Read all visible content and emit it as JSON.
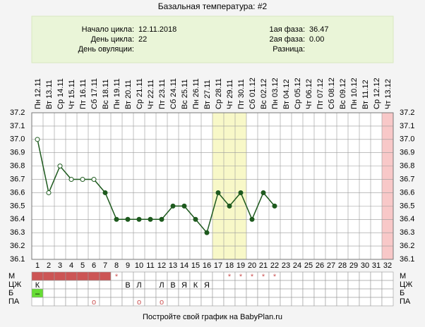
{
  "chart_data": {
    "type": "line",
    "title": "Базальная температура: #2",
    "info": {
      "left": [
        {
          "label": "Начало цикла:",
          "value": "12.11.2018"
        },
        {
          "label": "День цикла:",
          "value": "22"
        },
        {
          "label": "День овуляции:"
        }
      ],
      "right": [
        {
          "label": "1ая фаза:",
          "value": "36.47"
        },
        {
          "label": "2ая фаза:",
          "value": "0.00"
        },
        {
          "label": "Разница:"
        }
      ]
    },
    "categories": [
      "Пн 12.11",
      "Вт 13.11",
      "Ср 14.11",
      "Чт 15.11",
      "Пт 16.11",
      "Сб 17.11",
      "Вс 18.11",
      "Пн 19.11",
      "Вт 20.11",
      "Ср 21.11",
      "Чт 22.11",
      "Пт 23.11",
      "Сб 24.11",
      "Вс 25.11",
      "Пн 26.11",
      "Вт 27.11",
      "Ср 28.11",
      "Чт 29.11",
      "Пт 30.11",
      "Сб 01.12",
      "Вс 02.12",
      "Пн 03.12",
      "Вт 04.12",
      "Ср 05.12",
      "Чт 06.12",
      "Пт 07.12",
      "Сб 08.12",
      "Вс 09.12",
      "Пн 10.12",
      "Вт 11.12",
      "Ср 12.12",
      "Чт 13.12"
    ],
    "days": [
      1,
      2,
      3,
      4,
      5,
      6,
      7,
      8,
      9,
      10,
      11,
      12,
      13,
      14,
      15,
      16,
      17,
      18,
      19,
      20,
      21,
      22,
      23,
      24,
      25,
      26,
      27,
      28,
      29,
      30,
      31,
      32
    ],
    "series": [
      {
        "name": "Температура",
        "color": "#1e5a1e",
        "values": [
          37.0,
          36.6,
          36.8,
          36.7,
          36.7,
          36.7,
          36.6,
          36.4,
          36.4,
          36.4,
          36.4,
          36.4,
          36.5,
          36.5,
          36.4,
          36.3,
          36.6,
          36.5,
          36.6,
          36.4,
          36.6,
          36.5,
          null,
          null,
          null,
          null,
          null,
          null,
          null,
          null,
          null,
          null
        ],
        "filled": [
          false,
          false,
          false,
          false,
          false,
          false,
          true,
          true,
          true,
          true,
          true,
          true,
          true,
          true,
          true,
          true,
          true,
          true,
          true,
          true,
          true,
          true,
          false,
          false,
          false,
          false,
          false,
          false,
          false,
          false,
          false,
          false
        ]
      }
    ],
    "ylim": [
      36.1,
      37.2
    ],
    "yticks": [
      36.1,
      36.2,
      36.3,
      36.4,
      36.5,
      36.6,
      36.7,
      36.8,
      36.9,
      {
        "value": 37,
        "label": "37.0"
      },
      37.1,
      37.2
    ],
    "grid": true,
    "highlight_days": [
      {
        "days": [
          17,
          18,
          19
        ],
        "color": "#f8f8c8"
      },
      {
        "days": [
          32
        ],
        "color": "#f8c8c8"
      }
    ],
    "rows": [
      {
        "name": "М",
        "fill": "#cc5555",
        "filled": [
          true,
          true,
          true,
          true,
          true,
          true,
          true,
          false,
          false,
          false,
          false,
          false,
          false,
          false,
          false,
          false,
          false,
          false,
          false,
          false,
          false,
          false,
          false,
          false,
          false,
          false,
          false,
          false,
          false,
          false,
          false,
          false
        ],
        "cells": [
          null,
          null,
          null,
          null,
          null,
          null,
          null,
          "*",
          null,
          null,
          null,
          null,
          null,
          null,
          null,
          null,
          null,
          "*",
          "*",
          "*",
          "*",
          "*",
          null,
          null,
          null,
          null,
          null,
          null,
          null,
          null,
          null,
          null
        ]
      },
      {
        "name": "ЦЖ",
        "cells": [
          "К",
          null,
          null,
          null,
          null,
          null,
          null,
          null,
          "В",
          "Л",
          null,
          "Л",
          "В",
          "Я",
          "К",
          "Я",
          null,
          null,
          null,
          null,
          null,
          null,
          null,
          null,
          null,
          null,
          null,
          null,
          null,
          null,
          null,
          null
        ]
      },
      {
        "name": "Б",
        "fill": "#66dd33",
        "filled": [
          true,
          false,
          false,
          false,
          false,
          false,
          false,
          false,
          false,
          false,
          false,
          false,
          false,
          false,
          false,
          false,
          false,
          false,
          false,
          false,
          false,
          false,
          false,
          false,
          false,
          false,
          false,
          false,
          false,
          false,
          false,
          false
        ],
        "cells": [
          "–",
          null,
          null,
          null,
          null,
          null,
          null,
          null,
          null,
          null,
          null,
          null,
          null,
          null,
          null,
          null,
          null,
          null,
          null,
          null,
          null,
          null,
          null,
          null,
          null,
          null,
          null,
          null,
          null,
          null,
          null,
          null
        ]
      },
      {
        "name": "ПА",
        "cells": [
          null,
          null,
          null,
          null,
          null,
          "о",
          null,
          null,
          null,
          "о",
          null,
          "о",
          null,
          null,
          null,
          null,
          null,
          null,
          null,
          null,
          null,
          null,
          null,
          null,
          null,
          null,
          null,
          null,
          null,
          null,
          null,
          null
        ]
      }
    ],
    "footer": "Постройте свой график на BabyPlan.ru"
  }
}
